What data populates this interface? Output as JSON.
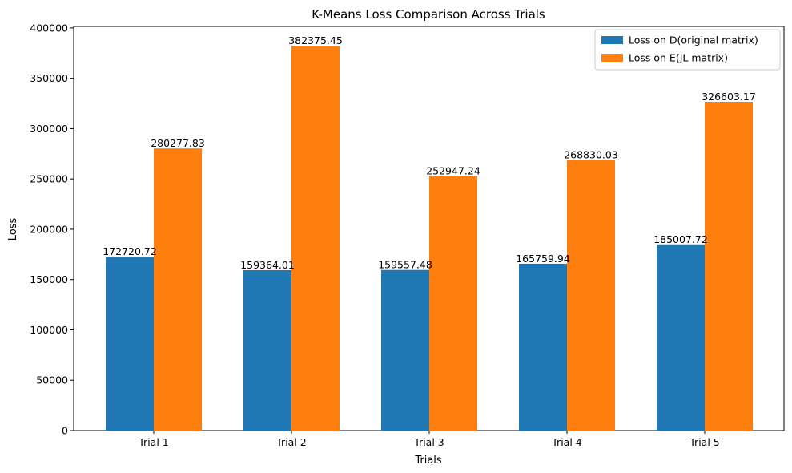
{
  "chart_data": {
    "type": "bar",
    "title": "K-Means Loss Comparison Across Trials",
    "xlabel": "Trials",
    "ylabel": "Loss",
    "categories": [
      "Trial 1",
      "Trial 2",
      "Trial 3",
      "Trial 4",
      "Trial 5"
    ],
    "series": [
      {
        "name": "Loss on D(original matrix)",
        "color": "#1f77b4",
        "values": [
          172720.72,
          159364.01,
          159557.48,
          165759.94,
          185007.72
        ],
        "labels": [
          "172720.72",
          "159364.01",
          "159557.48",
          "165759.94",
          "185007.72"
        ]
      },
      {
        "name": "Loss on E(JL matrix)",
        "color": "#ff7f0e",
        "values": [
          280277.83,
          382375.45,
          252947.24,
          268830.03,
          326603.17
        ],
        "labels": [
          "280277.83",
          "382375.45",
          "252947.24",
          "268830.03",
          "326603.17"
        ]
      }
    ],
    "ylim": [
      0,
      401494
    ],
    "yticks": [
      0,
      50000,
      100000,
      150000,
      200000,
      250000,
      300000,
      350000,
      400000
    ],
    "ytick_labels": [
      "0",
      "50000",
      "100000",
      "150000",
      "200000",
      "250000",
      "300000",
      "350000",
      "400000"
    ],
    "grid": false,
    "legend_position": "top-right"
  }
}
